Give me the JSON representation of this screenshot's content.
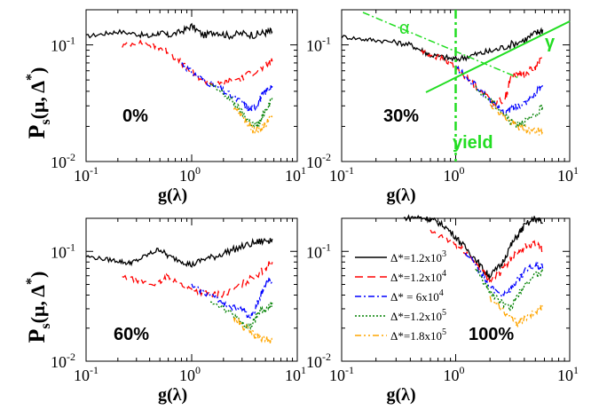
{
  "figure": {
    "ylabel_main": "P",
    "ylabel_sub": "s",
    "ylabel_args": "(μ, Δ",
    "ylabel_star": "*",
    "ylabel_close": ")",
    "xlabel_main": "g(λ)"
  },
  "legend": {
    "entries": [
      {
        "label": "Δ*=1.2x10",
        "exp": "3",
        "color": "#000000",
        "dash": "none"
      },
      {
        "label": "Δ*=1.2x10",
        "exp": "4",
        "color": "#ff0000",
        "dash": "9 5"
      },
      {
        "label": "Δ* = 6x10",
        "exp": "4",
        "color": "#0000ff",
        "dash": "7 3 2 3"
      },
      {
        "label": "Δ*=1.2x10",
        "exp": "5",
        "color": "#008000",
        "dash": "2 2"
      },
      {
        "label": "Δ*=1.8x10",
        "exp": "5",
        "color": "#ffa500",
        "dash": "7 3 2 3 2 3"
      }
    ]
  },
  "annotations": {
    "alpha": "α",
    "gamma": "γ",
    "yield": "yield",
    "color": "#22dd22"
  },
  "chart_data": [
    {
      "type": "line",
      "panel_label": "0%",
      "xscale": "log",
      "yscale": "log",
      "xlim": [
        0.1,
        10
      ],
      "ylim": [
        0.01,
        0.2
      ],
      "x_ticks": [
        {
          "base": "10",
          "exp": "-1"
        },
        {
          "base": "10",
          "exp": "0"
        },
        {
          "base": "10",
          "exp": "1"
        }
      ],
      "y_ticks": [
        {
          "base": "10",
          "exp": "-2"
        },
        {
          "base": "10",
          "exp": "-1"
        }
      ],
      "series": [
        {
          "x": [
            0.1,
            0.15,
            0.2,
            0.3,
            0.4,
            0.5,
            0.6,
            0.8,
            1.0,
            1.3,
            1.7,
            2.2,
            3.0,
            4.0,
            5.0,
            5.8
          ],
          "y": [
            0.118,
            0.125,
            0.13,
            0.124,
            0.118,
            0.128,
            0.12,
            0.13,
            0.145,
            0.12,
            0.13,
            0.12,
            0.125,
            0.122,
            0.128,
            0.13
          ]
        },
        {
          "x": [
            0.22,
            0.3,
            0.4,
            0.5,
            0.6,
            0.8,
            1.0,
            1.3,
            1.7,
            2.2,
            3.0,
            4.0,
            5.0,
            5.8
          ],
          "y": [
            0.098,
            0.105,
            0.1,
            0.095,
            0.087,
            0.07,
            0.058,
            0.05,
            0.045,
            0.048,
            0.052,
            0.06,
            0.065,
            0.072
          ]
        },
        {
          "x": [
            0.8,
            1.0,
            1.3,
            1.7,
            2.2,
            3.0,
            3.5,
            4.0,
            4.5,
            5.0,
            5.8
          ],
          "y": [
            0.07,
            0.058,
            0.05,
            0.044,
            0.038,
            0.032,
            0.028,
            0.03,
            0.035,
            0.04,
            0.045
          ]
        },
        {
          "x": [
            1.5,
            2.0,
            2.5,
            3.0,
            3.5,
            4.0,
            4.5,
            5.0,
            5.8
          ],
          "y": [
            0.045,
            0.038,
            0.032,
            0.026,
            0.022,
            0.02,
            0.022,
            0.028,
            0.035
          ]
        },
        {
          "x": [
            2.5,
            3.0,
            3.5,
            4.0,
            4.5,
            5.0,
            5.8
          ],
          "y": [
            0.03,
            0.025,
            0.02,
            0.018,
            0.019,
            0.021,
            0.024
          ]
        }
      ]
    },
    {
      "type": "line",
      "panel_label": "30%",
      "xscale": "log",
      "yscale": "log",
      "xlim": [
        0.1,
        10
      ],
      "ylim": [
        0.01,
        0.2
      ],
      "x_ticks": [
        {
          "base": "10",
          "exp": "-1"
        },
        {
          "base": "10",
          "exp": "0"
        },
        {
          "base": "10",
          "exp": "1"
        }
      ],
      "y_ticks": [
        {
          "base": "10",
          "exp": "-2"
        },
        {
          "base": "10",
          "exp": "-1"
        }
      ],
      "series": [
        {
          "x": [
            0.1,
            0.15,
            0.2,
            0.3,
            0.4,
            0.5,
            0.6,
            0.8,
            1.0,
            1.3,
            1.7,
            2.2,
            3.0,
            4.0,
            5.0,
            5.8
          ],
          "y": [
            0.118,
            0.112,
            0.11,
            0.105,
            0.1,
            0.09,
            0.082,
            0.078,
            0.075,
            0.08,
            0.085,
            0.09,
            0.1,
            0.11,
            0.125,
            0.135
          ]
        },
        {
          "x": [
            0.5,
            0.6,
            0.8,
            1.0,
            1.3,
            1.7,
            2.2,
            2.7,
            3.0,
            3.5,
            4.0,
            5.0,
            5.8
          ],
          "y": [
            0.088,
            0.082,
            0.075,
            0.065,
            0.05,
            0.04,
            0.032,
            0.034,
            0.05,
            0.058,
            0.055,
            0.065,
            0.08
          ]
        },
        {
          "x": [
            1.0,
            1.3,
            1.7,
            2.2,
            2.7,
            3.0,
            3.5,
            4.0,
            5.0,
            5.8
          ],
          "y": [
            0.065,
            0.05,
            0.04,
            0.03,
            0.026,
            0.028,
            0.03,
            0.032,
            0.038,
            0.045
          ]
        },
        {
          "x": [
            1.5,
            2.0,
            2.5,
            3.0,
            3.5,
            4.0,
            5.0,
            5.8
          ],
          "y": [
            0.042,
            0.034,
            0.027,
            0.022,
            0.021,
            0.022,
            0.024,
            0.03
          ]
        },
        {
          "x": [
            2.0,
            2.5,
            3.0,
            3.5,
            4.0,
            5.0,
            5.8
          ],
          "y": [
            0.032,
            0.026,
            0.022,
            0.02,
            0.019,
            0.018,
            0.018
          ]
        }
      ]
    },
    {
      "type": "line",
      "panel_label": "60%",
      "xscale": "log",
      "yscale": "log",
      "xlim": [
        0.1,
        10
      ],
      "ylim": [
        0.01,
        0.2
      ],
      "x_ticks": [
        {
          "base": "10",
          "exp": "-1"
        },
        {
          "base": "10",
          "exp": "0"
        },
        {
          "base": "10",
          "exp": "1"
        }
      ],
      "y_ticks": [
        {
          "base": "10",
          "exp": "-2"
        },
        {
          "base": "10",
          "exp": "-1"
        }
      ],
      "series": [
        {
          "x": [
            0.1,
            0.15,
            0.2,
            0.25,
            0.3,
            0.4,
            0.5,
            0.6,
            0.8,
            1.0,
            1.3,
            1.7,
            2.2,
            3.0,
            4.0,
            5.0,
            5.8
          ],
          "y": [
            0.09,
            0.085,
            0.082,
            0.078,
            0.082,
            0.095,
            0.105,
            0.09,
            0.082,
            0.075,
            0.085,
            0.09,
            0.1,
            0.11,
            0.12,
            0.125,
            0.13
          ]
        },
        {
          "x": [
            0.22,
            0.3,
            0.4,
            0.5,
            0.6,
            0.8,
            1.0,
            1.3,
            1.7,
            2.2,
            3.0,
            4.0,
            5.0,
            5.8
          ],
          "y": [
            0.058,
            0.055,
            0.05,
            0.052,
            0.06,
            0.05,
            0.045,
            0.042,
            0.04,
            0.042,
            0.05,
            0.06,
            0.07,
            0.08
          ]
        },
        {
          "x": [
            1.0,
            1.3,
            1.7,
            2.2,
            3.0,
            3.5,
            4.0,
            4.5,
            5.0,
            5.8
          ],
          "y": [
            0.048,
            0.043,
            0.038,
            0.032,
            0.03,
            0.025,
            0.03,
            0.04,
            0.05,
            0.055
          ]
        },
        {
          "x": [
            1.5,
            2.0,
            2.5,
            3.0,
            3.5,
            4.0,
            4.5,
            5.0,
            5.8
          ],
          "y": [
            0.036,
            0.031,
            0.026,
            0.022,
            0.02,
            0.024,
            0.03,
            0.028,
            0.034
          ]
        },
        {
          "x": [
            2.5,
            3.0,
            3.5,
            4.0,
            4.5,
            5.0,
            5.8
          ],
          "y": [
            0.025,
            0.021,
            0.019,
            0.017,
            0.016,
            0.016,
            0.015
          ]
        }
      ]
    },
    {
      "type": "line",
      "panel_label": "100%",
      "xscale": "log",
      "yscale": "log",
      "xlim": [
        0.1,
        10
      ],
      "ylim": [
        0.01,
        0.2
      ],
      "x_ticks": [
        {
          "base": "10",
          "exp": "-1"
        },
        {
          "base": "10",
          "exp": "0"
        },
        {
          "base": "10",
          "exp": "1"
        }
      ],
      "y_ticks": [
        {
          "base": "10",
          "exp": "-2"
        },
        {
          "base": "10",
          "exp": "-1"
        }
      ],
      "series": [
        {
          "x": [
            0.35,
            0.45,
            0.55,
            0.65,
            0.8,
            1.0,
            1.2,
            1.5,
            1.8,
            2.0,
            2.5,
            3.0,
            3.5,
            4.0,
            5.0,
            5.8
          ],
          "y": [
            0.2,
            0.205,
            0.2,
            0.19,
            0.17,
            0.135,
            0.11,
            0.085,
            0.065,
            0.06,
            0.075,
            0.11,
            0.14,
            0.17,
            0.2,
            0.18
          ]
        },
        {
          "x": [
            0.6,
            0.8,
            1.0,
            1.2,
            1.5,
            1.8,
            2.0,
            2.5,
            3.0,
            3.5,
            4.0,
            5.0,
            5.8
          ],
          "y": [
            0.15,
            0.13,
            0.115,
            0.1,
            0.08,
            0.062,
            0.055,
            0.065,
            0.085,
            0.1,
            0.11,
            0.12,
            0.1
          ]
        },
        {
          "x": [
            1.2,
            1.5,
            1.8,
            2.0,
            2.5,
            3.0,
            3.5,
            4.0,
            5.0,
            5.8
          ],
          "y": [
            0.1,
            0.075,
            0.055,
            0.048,
            0.04,
            0.045,
            0.055,
            0.065,
            0.075,
            0.07
          ]
        },
        {
          "x": [
            1.5,
            1.8,
            2.0,
            2.5,
            3.0,
            3.5,
            4.0,
            5.0,
            5.8
          ],
          "y": [
            0.07,
            0.05,
            0.043,
            0.035,
            0.03,
            0.04,
            0.05,
            0.06,
            0.065
          ]
        },
        {
          "x": [
            2.0,
            2.5,
            3.0,
            3.5,
            4.0,
            5.0,
            5.8
          ],
          "y": [
            0.038,
            0.03,
            0.025,
            0.022,
            0.024,
            0.028,
            0.032
          ]
        }
      ]
    }
  ]
}
